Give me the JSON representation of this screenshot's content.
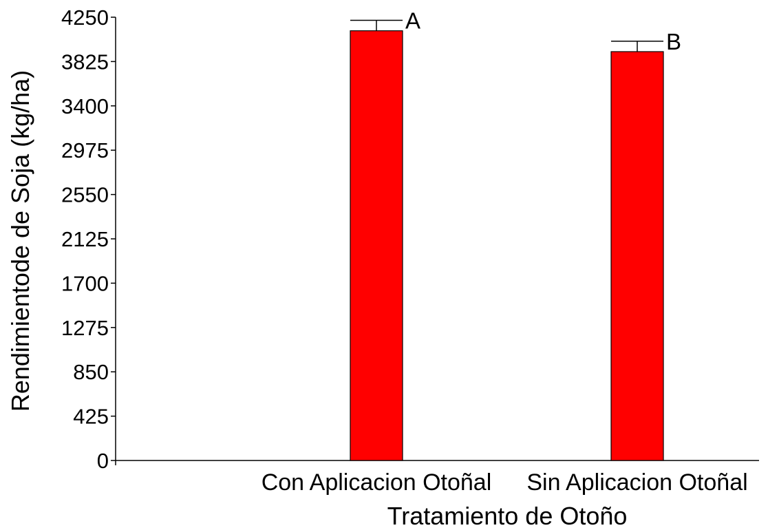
{
  "chart_data": {
    "type": "bar",
    "title": "",
    "xlabel": "Tratamiento de Otoño",
    "ylabel": "Rendimientode de Soja (kg/ha)",
    "ylim": [
      0,
      4250
    ],
    "yticks": [
      0,
      425,
      850,
      1275,
      1700,
      2125,
      2550,
      2975,
      3400,
      3825,
      4250
    ],
    "categories": [
      "Con Aplicacion Otoñal",
      "Sin Aplicacion Otoñal"
    ],
    "values": [
      4120,
      3920
    ],
    "error": [
      100,
      100
    ],
    "labels": [
      "A",
      "B"
    ],
    "bar_color": "#ff0000",
    "grid": false
  }
}
